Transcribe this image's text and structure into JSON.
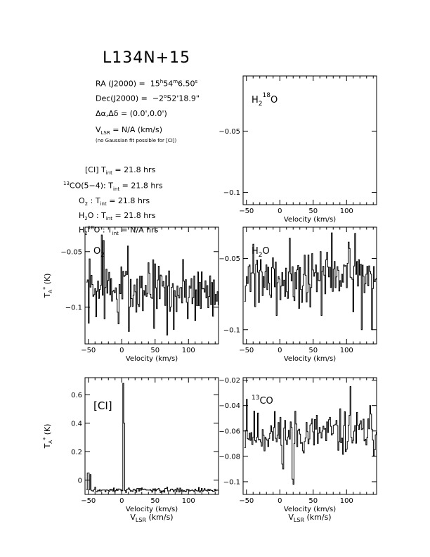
{
  "title": "L134N+15",
  "info": {
    "ra": {
      "lhs": "RA (J2000) =",
      "hh": "15",
      "h": "h",
      "mm": "54",
      "m": "m",
      "ss": "6.50",
      "s": "s"
    },
    "dec": {
      "lhs": "Dec(J2000) =",
      "deg": "−2",
      "o": "o",
      "rest": "52'18.9\""
    },
    "offset": "Δα,Δδ = (0.0',0.0')",
    "vlsr": {
      "v": "V",
      "sub": "LSR",
      "rest": " = N/A  (km/s)"
    },
    "note": "(no Gaussian fit possible for [CI])",
    "tint": [
      {
        "pre": "",
        "sup": "",
        "name": "[CI]",
        "sub": "",
        "post": "",
        "t": "T",
        "tsub": "int",
        "value": " = 21.8 hrs"
      },
      {
        "pre": "",
        "sup": "13",
        "name": "CO(5−4):",
        "sub": "",
        "post": "",
        "t": "T",
        "tsub": "int",
        "value": " = 21.8 hrs"
      },
      {
        "pre": "O",
        "sup": "",
        "name": "",
        "sub": "2",
        "post": " :",
        "t": "T",
        "tsub": "int",
        "value": " = 21.8 hrs"
      },
      {
        "pre": "H",
        "sup": "",
        "name": "",
        "sub": "2",
        "post": "O :",
        "t": "T",
        "tsub": "int",
        "value": " = 21.8 hrs"
      },
      {
        "pre": "H",
        "sup": "18",
        "name": "O :",
        "sub": "2",
        "post": "",
        "t": "T",
        "tsub": "int",
        "value": " = N/A  hrs"
      }
    ]
  },
  "chart_data": [
    {
      "id": "h218o",
      "type": "line",
      "label": {
        "main": "H",
        "sub": "2",
        "sup": "18",
        "tail": "O"
      },
      "xlim": [
        -55,
        145
      ],
      "ylim": [
        -0.11,
        -0.005
      ],
      "xticks": [
        -50,
        0,
        50,
        100
      ],
      "yticks": [
        -0.05,
        -0.1
      ],
      "ytick_labels": [
        "−0.05",
        "−0.1"
      ],
      "xlabel": "Velocity (km/s)",
      "ylabel": "",
      "xlabel2": "",
      "series": []
    },
    {
      "id": "o2",
      "type": "line",
      "label": {
        "main": "O",
        "sub": "2",
        "sup": "",
        "tail": ""
      },
      "xlim": [
        -55,
        145
      ],
      "ylim": [
        -0.133,
        -0.028
      ],
      "xticks": [
        -50,
        0,
        50,
        100
      ],
      "yticks": [
        -0.05,
        -0.1
      ],
      "ytick_labels": [
        "−0.05",
        "−0.1"
      ],
      "xlabel": "Velocity (km/s)",
      "ylabel": "T_A* (K)",
      "xlabel2": "",
      "series": [
        {
          "baseline": -0.085,
          "noise": 0.018,
          "seed": 7,
          "spikes": [
            [
              -30,
              -0.035
            ],
            [
              -28,
              -0.04
            ],
            [
              8,
              -0.045
            ],
            [
              40,
              -0.06
            ],
            [
              -5,
              -0.115
            ],
            [
              68,
              -0.125
            ],
            [
              77,
              -0.12
            ]
          ]
        }
      ]
    },
    {
      "id": "h2o",
      "type": "line",
      "label": {
        "main": "H",
        "sub": "2",
        "sup": "",
        "tail": "O"
      },
      "xlim": [
        -55,
        145
      ],
      "ylim": [
        -0.11,
        -0.028
      ],
      "xticks": [
        -50,
        0,
        50,
        100
      ],
      "yticks": [
        -0.05,
        -0.1
      ],
      "ytick_labels": [
        "−0.05",
        "−0.1"
      ],
      "xlabel": "Velocity (km/s)",
      "ylabel": "",
      "xlabel2": "",
      "series": [
        {
          "baseline": -0.062,
          "noise": 0.013,
          "seed": 21,
          "spikes": [
            [
              77,
              -0.032
            ],
            [
              -40,
              -0.04
            ],
            [
              28,
              -0.085
            ],
            [
              62,
              -0.09
            ],
            [
              -5,
              -0.09
            ],
            [
              122,
              -0.1
            ],
            [
              137,
              -0.1
            ]
          ]
        }
      ]
    },
    {
      "id": "ci",
      "type": "line",
      "label": {
        "main": "[CI]",
        "sub": "",
        "sup": "",
        "tail": ""
      },
      "xlim": [
        -55,
        145
      ],
      "ylim": [
        -0.1,
        0.72
      ],
      "xticks": [
        -50,
        0,
        50,
        100
      ],
      "yticks": [
        0,
        0.2,
        0.4,
        0.6
      ],
      "ytick_labels": [
        "0",
        "0.2",
        "0.4",
        "0.6"
      ],
      "xlabel": "Velocity (km/s)",
      "ylabel": "T_A* (K)",
      "xlabel2": "V_LSR (km/s)",
      "series": [
        {
          "baseline": -0.07,
          "noise": 0.01,
          "seed": 3,
          "spikes": [
            [
              2,
              0.68
            ],
            [
              3,
              0.4
            ],
            [
              -52,
              0.05
            ],
            [
              -50,
              0.05
            ],
            [
              -48,
              0.04
            ]
          ]
        }
      ]
    },
    {
      "id": "13co",
      "type": "line",
      "label": {
        "main": "CO",
        "sub": "",
        "sup": "13",
        "tail": ""
      },
      "xlim": [
        -55,
        145
      ],
      "ylim": [
        -0.11,
        -0.018
      ],
      "xticks": [
        -50,
        0,
        50,
        100
      ],
      "yticks": [
        -0.02,
        -0.04,
        -0.06,
        -0.08,
        -0.1
      ],
      "ytick_labels": [
        "−0.02",
        "−0.04",
        "−0.06",
        "−0.08",
        "−0.1"
      ],
      "xlabel": "Velocity (km/s)",
      "ylabel": "",
      "xlabel2": "V_LSR (km/s)",
      "series": [
        {
          "baseline": -0.062,
          "noise": 0.011,
          "seed": 11,
          "spikes": [
            [
              105,
              -0.025
            ],
            [
              -50,
              -0.035
            ],
            [
              20,
              -0.102
            ],
            [
              18,
              -0.098
            ],
            [
              5,
              -0.09
            ],
            [
              135,
              -0.04
            ]
          ]
        }
      ]
    }
  ]
}
